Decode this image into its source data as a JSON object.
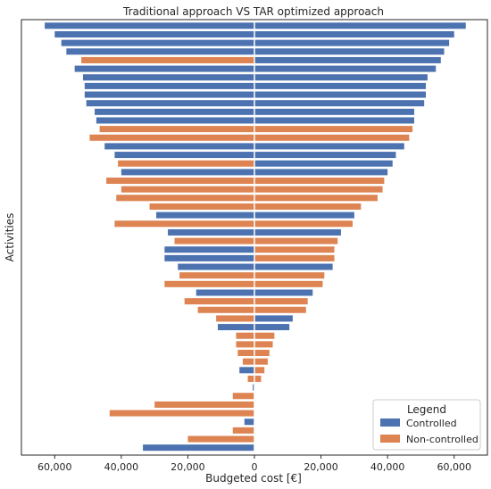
{
  "chart_data": {
    "type": "bar",
    "orientation": "horizontal-diverging",
    "title": "Traditional approach VS TAR optimized approach",
    "xlabel": "Budgeted cost [€]",
    "ylabel": "Activities",
    "xlim": [
      -70000,
      70000
    ],
    "xticks": [
      -60000,
      -40000,
      -20000,
      0,
      20000,
      40000,
      60000
    ],
    "xtick_labels": [
      "60,000",
      "40,000",
      "20,000",
      "0",
      "20,000",
      "40,000",
      "60,000"
    ],
    "grid": false,
    "legend": {
      "title": "Legend",
      "placement": "bottom-right",
      "entries": [
        {
          "name": "Controlled",
          "color": "#4c72b0"
        },
        {
          "name": "Non-controlled",
          "color": "#dd8452"
        }
      ]
    },
    "colors": {
      "Controlled": "#4c72b0",
      "Non-controlled": "#dd8452"
    },
    "series": [
      {
        "name": "Traditional approach",
        "side": "left",
        "values": [
          {
            "v": 63000,
            "c": "Controlled"
          },
          {
            "v": 60000,
            "c": "Controlled"
          },
          {
            "v": 58000,
            "c": "Controlled"
          },
          {
            "v": 56500,
            "c": "Controlled"
          },
          {
            "v": 52000,
            "c": "Non-controlled"
          },
          {
            "v": 54000,
            "c": "Controlled"
          },
          {
            "v": 51500,
            "c": "Controlled"
          },
          {
            "v": 51000,
            "c": "Controlled"
          },
          {
            "v": 51000,
            "c": "Controlled"
          },
          {
            "v": 50500,
            "c": "Controlled"
          },
          {
            "v": 48000,
            "c": "Controlled"
          },
          {
            "v": 47500,
            "c": "Controlled"
          },
          {
            "v": 46500,
            "c": "Non-controlled"
          },
          {
            "v": 49500,
            "c": "Non-controlled"
          },
          {
            "v": 45000,
            "c": "Controlled"
          },
          {
            "v": 42000,
            "c": "Controlled"
          },
          {
            "v": 41000,
            "c": "Non-controlled"
          },
          {
            "v": 40000,
            "c": "Controlled"
          },
          {
            "v": 44500,
            "c": "Non-controlled"
          },
          {
            "v": 40000,
            "c": "Non-controlled"
          },
          {
            "v": 41500,
            "c": "Non-controlled"
          },
          {
            "v": 31500,
            "c": "Non-controlled"
          },
          {
            "v": 29500,
            "c": "Controlled"
          },
          {
            "v": 42000,
            "c": "Non-controlled"
          },
          {
            "v": 26000,
            "c": "Controlled"
          },
          {
            "v": 24000,
            "c": "Non-controlled"
          },
          {
            "v": 27000,
            "c": "Controlled"
          },
          {
            "v": 27000,
            "c": "Controlled"
          },
          {
            "v": 23000,
            "c": "Controlled"
          },
          {
            "v": 22500,
            "c": "Non-controlled"
          },
          {
            "v": 27000,
            "c": "Non-controlled"
          },
          {
            "v": 17500,
            "c": "Controlled"
          },
          {
            "v": 21000,
            "c": "Non-controlled"
          },
          {
            "v": 17000,
            "c": "Non-controlled"
          },
          {
            "v": 11500,
            "c": "Non-controlled"
          },
          {
            "v": 11000,
            "c": "Controlled"
          },
          {
            "v": 5500,
            "c": "Non-controlled"
          },
          {
            "v": 5500,
            "c": "Non-controlled"
          },
          {
            "v": 5000,
            "c": "Non-controlled"
          },
          {
            "v": 3500,
            "c": "Non-controlled"
          },
          {
            "v": 4500,
            "c": "Controlled"
          },
          {
            "v": 2000,
            "c": "Non-controlled"
          },
          {
            "v": 500,
            "c": "Controlled"
          },
          {
            "v": 6500,
            "c": "Non-controlled"
          },
          {
            "v": 30000,
            "c": "Non-controlled"
          },
          {
            "v": 43500,
            "c": "Non-controlled"
          },
          {
            "v": 3000,
            "c": "Controlled"
          },
          {
            "v": 6500,
            "c": "Non-controlled"
          },
          {
            "v": 20000,
            "c": "Non-controlled"
          },
          {
            "v": 33500,
            "c": "Controlled"
          }
        ]
      },
      {
        "name": "TAR optimized approach",
        "side": "right",
        "values": [
          {
            "v": 63500,
            "c": "Controlled"
          },
          {
            "v": 60000,
            "c": "Controlled"
          },
          {
            "v": 58500,
            "c": "Controlled"
          },
          {
            "v": 57000,
            "c": "Controlled"
          },
          {
            "v": 56000,
            "c": "Controlled"
          },
          {
            "v": 54500,
            "c": "Controlled"
          },
          {
            "v": 52000,
            "c": "Controlled"
          },
          {
            "v": 51500,
            "c": "Controlled"
          },
          {
            "v": 51500,
            "c": "Controlled"
          },
          {
            "v": 51000,
            "c": "Controlled"
          },
          {
            "v": 48000,
            "c": "Controlled"
          },
          {
            "v": 48000,
            "c": "Controlled"
          },
          {
            "v": 47500,
            "c": "Non-controlled"
          },
          {
            "v": 46500,
            "c": "Non-controlled"
          },
          {
            "v": 45000,
            "c": "Controlled"
          },
          {
            "v": 42500,
            "c": "Controlled"
          },
          {
            "v": 41500,
            "c": "Controlled"
          },
          {
            "v": 40000,
            "c": "Controlled"
          },
          {
            "v": 39000,
            "c": "Non-controlled"
          },
          {
            "v": 38500,
            "c": "Non-controlled"
          },
          {
            "v": 37000,
            "c": "Non-controlled"
          },
          {
            "v": 32000,
            "c": "Non-controlled"
          },
          {
            "v": 30000,
            "c": "Controlled"
          },
          {
            "v": 29500,
            "c": "Non-controlled"
          },
          {
            "v": 26000,
            "c": "Controlled"
          },
          {
            "v": 25000,
            "c": "Non-controlled"
          },
          {
            "v": 24000,
            "c": "Non-controlled"
          },
          {
            "v": 24000,
            "c": "Non-controlled"
          },
          {
            "v": 23500,
            "c": "Controlled"
          },
          {
            "v": 21000,
            "c": "Non-controlled"
          },
          {
            "v": 20500,
            "c": "Non-controlled"
          },
          {
            "v": 17500,
            "c": "Controlled"
          },
          {
            "v": 16000,
            "c": "Non-controlled"
          },
          {
            "v": 15500,
            "c": "Non-controlled"
          },
          {
            "v": 11500,
            "c": "Controlled"
          },
          {
            "v": 10500,
            "c": "Controlled"
          },
          {
            "v": 6000,
            "c": "Non-controlled"
          },
          {
            "v": 5500,
            "c": "Non-controlled"
          },
          {
            "v": 4500,
            "c": "Non-controlled"
          },
          {
            "v": 4000,
            "c": "Non-controlled"
          },
          {
            "v": 3000,
            "c": "Non-controlled"
          },
          {
            "v": 2000,
            "c": "Non-controlled"
          },
          {
            "v": 0,
            "c": "Controlled"
          },
          {
            "v": 0,
            "c": "Non-controlled"
          },
          {
            "v": 0,
            "c": "Non-controlled"
          },
          {
            "v": 0,
            "c": "Non-controlled"
          },
          {
            "v": 0,
            "c": "Controlled"
          },
          {
            "v": 0,
            "c": "Non-controlled"
          },
          {
            "v": 0,
            "c": "Non-controlled"
          },
          {
            "v": 0,
            "c": "Controlled"
          }
        ]
      }
    ]
  }
}
